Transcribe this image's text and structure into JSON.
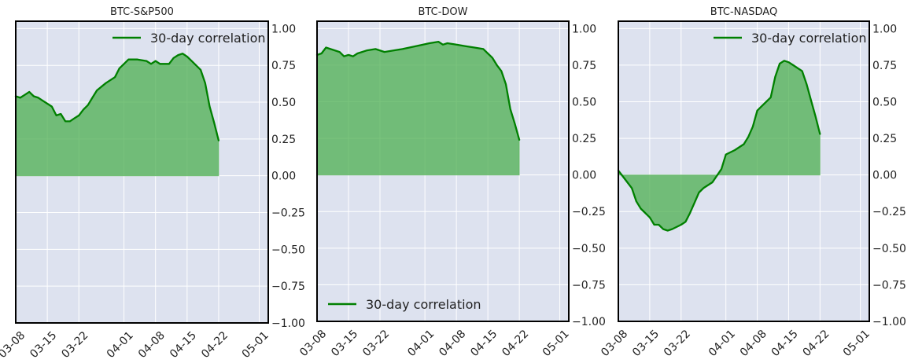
{
  "chart_data": [
    {
      "type": "area",
      "title": "BTC-S&P500",
      "xlabel": "",
      "ylabel": "",
      "x_ticks": [
        "03-08",
        "03-15",
        "03-22",
        "04-01",
        "04-08",
        "04-15",
        "04-22",
        "05-01"
      ],
      "y_ticks": [
        1.0,
        0.75,
        0.5,
        0.25,
        0.0,
        -0.25,
        -0.5,
        -0.75,
        -1.0
      ],
      "xlim": [
        "2024-03-08",
        "2024-05-03"
      ],
      "ylim": [
        -1.0,
        1.05
      ],
      "grid": true,
      "legend": "top-right",
      "colors": {
        "line": "#008000",
        "fill": "#4CAF50",
        "axes_bg": "#dde2ef",
        "grid": "#ffffff"
      },
      "series": [
        {
          "name": "30-day correlation",
          "points": [
            [
              "2024-03-08",
              0.54
            ],
            [
              "2024-03-09",
              0.53
            ],
            [
              "2024-03-10",
              0.55
            ],
            [
              "2024-03-11",
              0.57
            ],
            [
              "2024-03-12",
              0.54
            ],
            [
              "2024-03-13",
              0.53
            ],
            [
              "2024-03-14",
              0.51
            ],
            [
              "2024-03-15",
              0.49
            ],
            [
              "2024-03-16",
              0.47
            ],
            [
              "2024-03-17",
              0.41
            ],
            [
              "2024-03-18",
              0.42
            ],
            [
              "2024-03-19",
              0.37
            ],
            [
              "2024-03-20",
              0.37
            ],
            [
              "2024-03-21",
              0.39
            ],
            [
              "2024-03-22",
              0.41
            ],
            [
              "2024-03-23",
              0.45
            ],
            [
              "2024-03-24",
              0.48
            ],
            [
              "2024-03-25",
              0.53
            ],
            [
              "2024-03-26",
              0.58
            ],
            [
              "2024-03-28",
              0.63
            ],
            [
              "2024-03-30",
              0.67
            ],
            [
              "2024-03-31",
              0.73
            ],
            [
              "2024-04-01",
              0.76
            ],
            [
              "2024-04-02",
              0.79
            ],
            [
              "2024-04-04",
              0.79
            ],
            [
              "2024-04-06",
              0.78
            ],
            [
              "2024-04-07",
              0.76
            ],
            [
              "2024-04-08",
              0.78
            ],
            [
              "2024-04-09",
              0.76
            ],
            [
              "2024-04-11",
              0.76
            ],
            [
              "2024-04-12",
              0.8
            ],
            [
              "2024-04-13",
              0.82
            ],
            [
              "2024-04-14",
              0.83
            ],
            [
              "2024-04-15",
              0.81
            ],
            [
              "2024-04-16",
              0.78
            ],
            [
              "2024-04-18",
              0.72
            ],
            [
              "2024-04-19",
              0.63
            ],
            [
              "2024-04-20",
              0.47
            ],
            [
              "2024-04-21",
              0.36
            ],
            [
              "2024-04-22",
              0.24
            ]
          ]
        }
      ]
    },
    {
      "type": "area",
      "title": "BTC-DOW",
      "xlabel": "",
      "ylabel": "",
      "x_ticks": [
        "03-08",
        "03-15",
        "03-22",
        "04-01",
        "04-08",
        "04-15",
        "04-22",
        "05-01"
      ],
      "y_ticks": [
        1.0,
        0.75,
        0.5,
        0.25,
        0.0,
        -0.25,
        -0.5,
        -0.75,
        -1.0
      ],
      "xlim": [
        "2024-03-08",
        "2024-05-03"
      ],
      "ylim": [
        -1.0,
        1.05
      ],
      "grid": true,
      "legend": "bottom-left",
      "colors": {
        "line": "#008000",
        "fill": "#4CAF50",
        "axes_bg": "#dde2ef",
        "grid": "#ffffff"
      },
      "series": [
        {
          "name": "30-day correlation",
          "points": [
            [
              "2024-03-08",
              0.82
            ],
            [
              "2024-03-09",
              0.83
            ],
            [
              "2024-03-10",
              0.87
            ],
            [
              "2024-03-11",
              0.86
            ],
            [
              "2024-03-13",
              0.84
            ],
            [
              "2024-03-14",
              0.81
            ],
            [
              "2024-03-15",
              0.82
            ],
            [
              "2024-03-16",
              0.81
            ],
            [
              "2024-03-17",
              0.83
            ],
            [
              "2024-03-19",
              0.85
            ],
            [
              "2024-03-21",
              0.86
            ],
            [
              "2024-03-23",
              0.84
            ],
            [
              "2024-03-25",
              0.85
            ],
            [
              "2024-03-27",
              0.86
            ],
            [
              "2024-03-30",
              0.88
            ],
            [
              "2024-04-02",
              0.9
            ],
            [
              "2024-04-04",
              0.91
            ],
            [
              "2024-04-05",
              0.89
            ],
            [
              "2024-04-06",
              0.9
            ],
            [
              "2024-04-08",
              0.89
            ],
            [
              "2024-04-10",
              0.88
            ],
            [
              "2024-04-12",
              0.87
            ],
            [
              "2024-04-14",
              0.86
            ],
            [
              "2024-04-15",
              0.83
            ],
            [
              "2024-04-16",
              0.8
            ],
            [
              "2024-04-17",
              0.75
            ],
            [
              "2024-04-18",
              0.71
            ],
            [
              "2024-04-19",
              0.62
            ],
            [
              "2024-04-20",
              0.45
            ],
            [
              "2024-04-21",
              0.35
            ],
            [
              "2024-04-22",
              0.24
            ]
          ]
        }
      ]
    },
    {
      "type": "area",
      "title": "BTC-NASDAQ",
      "xlabel": "",
      "ylabel": "",
      "x_ticks": [
        "03-08",
        "03-15",
        "03-22",
        "04-01",
        "04-08",
        "04-15",
        "04-22",
        "05-01"
      ],
      "y_ticks": [
        1.0,
        0.75,
        0.5,
        0.25,
        0.0,
        -0.25,
        -0.5,
        -0.75,
        -1.0
      ],
      "xlim": [
        "2024-03-08",
        "2024-05-03"
      ],
      "ylim": [
        -1.0,
        1.05
      ],
      "grid": true,
      "legend": "top-right",
      "colors": {
        "line": "#008000",
        "fill": "#4CAF50",
        "axes_bg": "#dde2ef",
        "grid": "#ffffff"
      },
      "series": [
        {
          "name": "30-day correlation",
          "points": [
            [
              "2024-03-08",
              0.03
            ],
            [
              "2024-03-09",
              -0.01
            ],
            [
              "2024-03-11",
              -0.09
            ],
            [
              "2024-03-12",
              -0.18
            ],
            [
              "2024-03-13",
              -0.23
            ],
            [
              "2024-03-15",
              -0.29
            ],
            [
              "2024-03-16",
              -0.34
            ],
            [
              "2024-03-17",
              -0.34
            ],
            [
              "2024-03-18",
              -0.37
            ],
            [
              "2024-03-19",
              -0.38
            ],
            [
              "2024-03-20",
              -0.37
            ],
            [
              "2024-03-22",
              -0.34
            ],
            [
              "2024-03-23",
              -0.32
            ],
            [
              "2024-03-24",
              -0.26
            ],
            [
              "2024-03-25",
              -0.19
            ],
            [
              "2024-03-26",
              -0.12
            ],
            [
              "2024-03-27",
              -0.09
            ],
            [
              "2024-03-29",
              -0.05
            ],
            [
              "2024-03-31",
              0.04
            ],
            [
              "2024-04-01",
              0.14
            ],
            [
              "2024-04-03",
              0.17
            ],
            [
              "2024-04-05",
              0.21
            ],
            [
              "2024-04-06",
              0.26
            ],
            [
              "2024-04-07",
              0.33
            ],
            [
              "2024-04-08",
              0.44
            ],
            [
              "2024-04-09",
              0.47
            ],
            [
              "2024-04-11",
              0.53
            ],
            [
              "2024-04-12",
              0.67
            ],
            [
              "2024-04-13",
              0.76
            ],
            [
              "2024-04-14",
              0.78
            ],
            [
              "2024-04-15",
              0.77
            ],
            [
              "2024-04-16",
              0.75
            ],
            [
              "2024-04-18",
              0.71
            ],
            [
              "2024-04-19",
              0.62
            ],
            [
              "2024-04-20",
              0.51
            ],
            [
              "2024-04-21",
              0.4
            ],
            [
              "2024-04-22",
              0.28
            ]
          ]
        }
      ]
    }
  ]
}
